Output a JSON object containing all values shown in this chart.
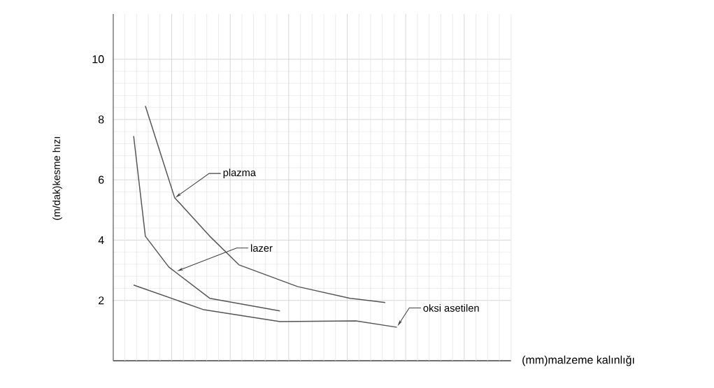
{
  "chart_data": {
    "type": "line",
    "xlabel": "(mm)malzeme kalınlığı",
    "ylabel": "(m/dak)kesme hızı",
    "categories": [
      null,
      null,
      null,
      null,
      null,
      null,
      null,
      null,
      null,
      null,
      null,
      null,
      null,
      null,
      null,
      null,
      null,
      null,
      null,
      null,
      null,
      null,
      null,
      null,
      null,
      null,
      null,
      null,
      null,
      null,
      null,
      null,
      null,
      null,
      null,
      null,
      null,
      null,
      null,
      null,
      null,
      null,
      null,
      null,
      null,
      null,
      null,
      null,
      null,
      null,
      null,
      null,
      null,
      null,
      null,
      null,
      null,
      null,
      null,
      null,
      null,
      null,
      null,
      null,
      null,
      null,
      null,
      null
    ],
    "ylim": [
      0,
      11.5
    ],
    "yticks": [
      2,
      4,
      6,
      8,
      10
    ],
    "tick_labels": "y",
    "grid": true,
    "marker": "none",
    "line_style": "solid",
    "series": [
      {
        "color": "#555555",
        "values": [
          null,
          null,
          null,
          null,
          null,
          8.45,
          null,
          null,
          null,
          null,
          5.41,
          null,
          null,
          null,
          null,
          null,
          4.13,
          null,
          null,
          null,
          null,
          3.18,
          null,
          null,
          null,
          null,
          null,
          null,
          null,
          null,
          null,
          2.46,
          null,
          null,
          null,
          null,
          null,
          null,
          null,
          null,
          2.07,
          null,
          null,
          null,
          null,
          null,
          1.93,
          null,
          null,
          null,
          null,
          null,
          null,
          null,
          null,
          null,
          null,
          null,
          null,
          null,
          null,
          null,
          null,
          null,
          null,
          null,
          null,
          null
        ]
      },
      {
        "color": "#555555",
        "values": [
          null,
          null,
          null,
          7.45,
          null,
          4.13,
          null,
          null,
          null,
          3.11,
          null,
          null,
          null,
          null,
          null,
          null,
          2.07,
          null,
          null,
          null,
          null,
          null,
          null,
          null,
          null,
          null,
          null,
          null,
          1.65,
          null,
          null,
          null,
          null,
          null,
          null,
          null,
          null,
          null,
          null,
          null,
          null,
          null,
          null,
          null,
          null,
          null,
          null,
          null,
          null,
          null,
          null,
          null,
          null,
          null,
          null,
          null,
          null,
          null,
          null,
          null,
          null,
          null,
          null,
          null,
          null,
          null,
          null,
          null
        ]
      },
      {
        "color": "#555555",
        "values": [
          null,
          null,
          null,
          2.51,
          null,
          null,
          null,
          null,
          null,
          null,
          null,
          null,
          null,
          null,
          null,
          1.69,
          null,
          null,
          null,
          null,
          null,
          null,
          null,
          null,
          null,
          null,
          null,
          null,
          1.3,
          null,
          null,
          null,
          null,
          null,
          null,
          null,
          null,
          null,
          null,
          null,
          null,
          1.32,
          null,
          null,
          null,
          null,
          null,
          null,
          1.11,
          null,
          null,
          null,
          null,
          null,
          null,
          null,
          null,
          null,
          null,
          null,
          null,
          null,
          null,
          null,
          null,
          null,
          null,
          null
        ]
      }
    ],
    "annotations": [
      "plazma",
      "lazer",
      "oksi asetilen"
    ]
  }
}
